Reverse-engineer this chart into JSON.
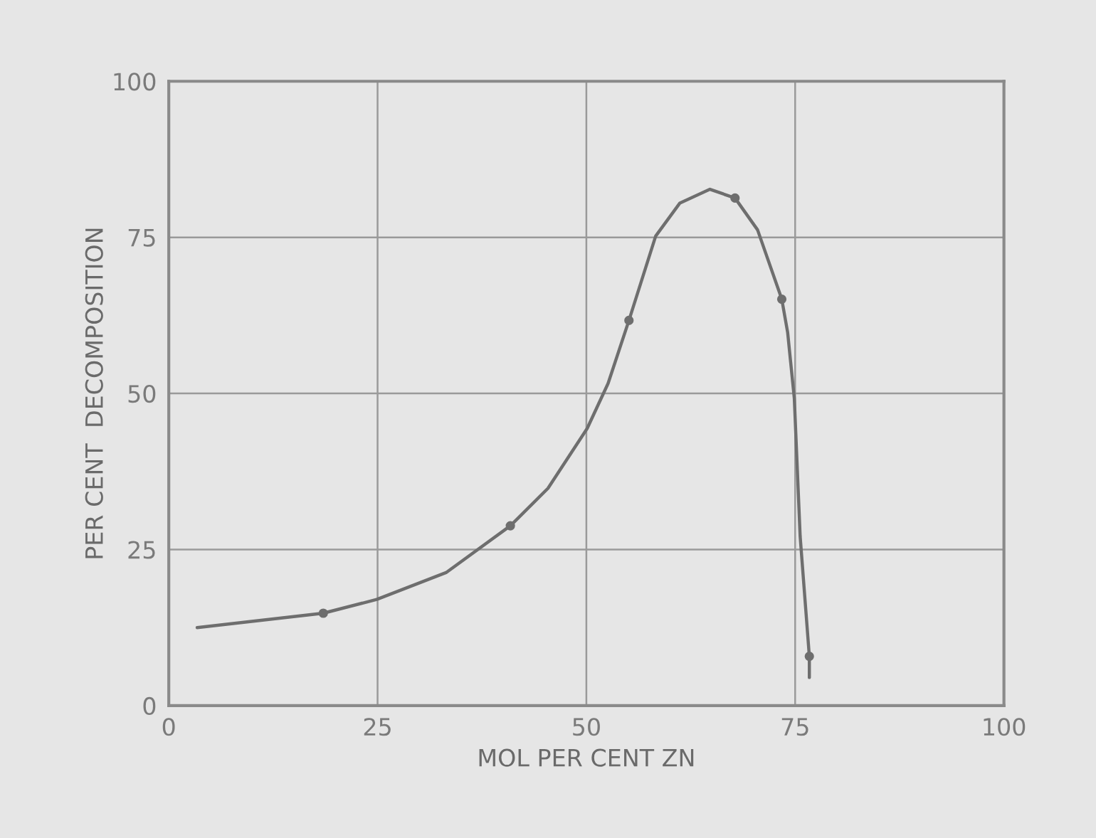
{
  "chart_data": {
    "type": "line",
    "xlabel": "MOL PER CENT ZN",
    "ylabel": "PER CENT  DECOMPOSITION",
    "xlim": [
      0,
      100
    ],
    "ylim": [
      0,
      100
    ],
    "xticks": [
      0,
      25,
      50,
      75,
      100
    ],
    "yticks": [
      0,
      25,
      50,
      75,
      100
    ],
    "grid": true,
    "series": [
      {
        "color": "#6e6e6e",
        "marker": "none",
        "x": [
          3.4,
          18.5,
          24.9,
          33.2,
          40.9,
          45.4,
          50.1,
          52.6,
          55.1,
          58.3,
          61.2,
          64.8,
          67.8,
          70.5,
          73.4,
          74.1,
          74.9,
          75.6,
          76.7,
          76.7
        ],
        "values": [
          12.5,
          14.8,
          17.0,
          21.3,
          28.8,
          34.8,
          44.4,
          51.6,
          61.7,
          75.2,
          80.5,
          82.7,
          81.3,
          76.2,
          65.1,
          59.8,
          49.2,
          27.1,
          7.9,
          4.5
        ]
      },
      {
        "type": "scatter",
        "color": "#6e6e6e",
        "marker": "circle",
        "x": [
          18.5,
          40.9,
          55.1,
          67.8,
          73.4,
          76.7
        ],
        "values": [
          14.8,
          28.8,
          61.7,
          81.3,
          65.1,
          7.9
        ]
      }
    ]
  }
}
